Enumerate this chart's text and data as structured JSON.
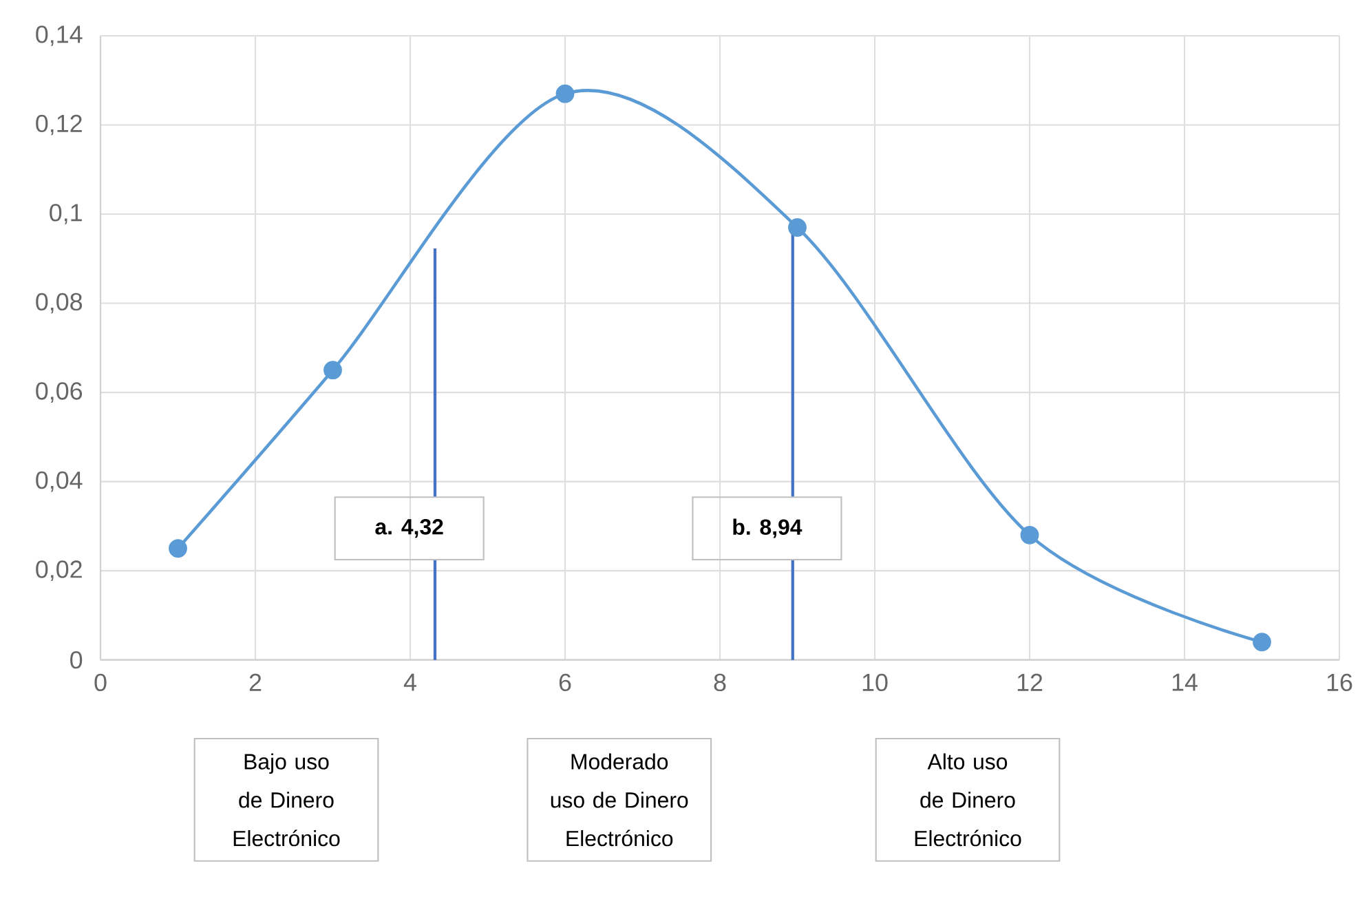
{
  "chart_data": {
    "type": "line",
    "x": [
      1,
      3,
      6,
      9,
      12,
      15
    ],
    "series": [
      {
        "color": "#5b9bd5",
        "values": [
          0.025,
          0.065,
          0.127,
          0.097,
          0.028,
          0.004
        ]
      }
    ],
    "xlim": [
      0,
      16
    ],
    "xticks": [
      0,
      2,
      4,
      6,
      8,
      10,
      12,
      14,
      16
    ],
    "ylim": [
      0,
      0.14
    ],
    "yticks": [
      0,
      {
        "value": 0.02,
        "label": "0,02"
      },
      {
        "value": 0.04,
        "label": "0,04"
      },
      {
        "value": 0.06,
        "label": "0,06"
      },
      {
        "value": 0.08,
        "label": "0,08"
      },
      {
        "value": 0.1,
        "label": "0,1"
      },
      {
        "value": 0.12,
        "label": "0,12"
      },
      {
        "value": 0.14,
        "label": "0,14"
      }
    ],
    "grid": true,
    "marker": "circle",
    "line_style": "solid",
    "ref_lines": [
      {
        "axis": "x",
        "value": 4.32,
        "label": "a. 4,32",
        "color": "#4472c4"
      },
      {
        "axis": "x",
        "value": 8.94,
        "label": "b. 8,94",
        "color": "#4472c4"
      }
    ],
    "annotations": [
      "Bajo uso de Dinero Electrónico",
      "Moderado uso de Dinero Electrónico",
      "Alto uso de Dinero Electrónico"
    ]
  }
}
